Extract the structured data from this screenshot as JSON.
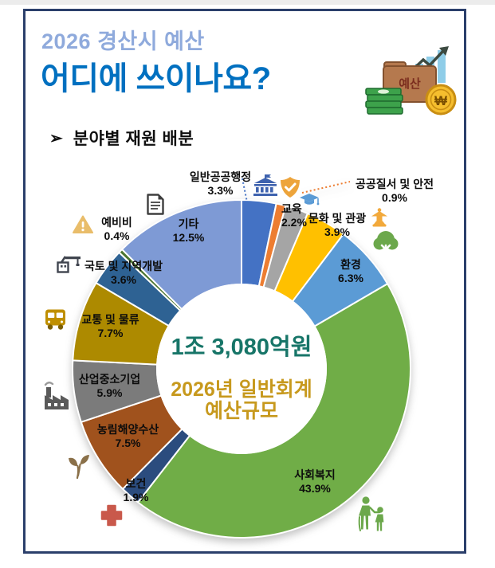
{
  "header": {
    "title_line1": "2026 경산시 예산",
    "title_line2": "어디에 쓰이나요?",
    "accent_light_blue": "#8FAADC",
    "accent_blue": "#0070C0",
    "budget_icon_label": "예산",
    "coin_symbol": "₩"
  },
  "section": {
    "bullet": "➢",
    "heading": "분야별 재원 배분"
  },
  "chart_data": {
    "type": "pie",
    "subtype": "donut",
    "title": "분야별 재원 배분",
    "start_angle_deg": 0,
    "direction": "clockwise",
    "center_label": {
      "line1": "1조 3,080억원",
      "line2": "2026년 일반회계",
      "line3": "예산규모",
      "line1_color": "#177568",
      "line23_color": "#C7991D"
    },
    "slices": [
      {
        "label": "일반공공행정",
        "value": 3.3,
        "pct": "3.3%",
        "color": "#4472C4",
        "icon": "government-building-icon"
      },
      {
        "label": "공공질서 및 안전",
        "value": 0.9,
        "pct": "0.9%",
        "color": "#ED7D31",
        "icon": "shield-check-icon"
      },
      {
        "label": "교육",
        "value": 2.2,
        "pct": "2.2%",
        "color": "#A5A5A5",
        "icon": "graduation-cap-icon"
      },
      {
        "label": "문화 및 관광",
        "value": 3.9,
        "pct": "3.9%",
        "color": "#FFC000",
        "icon": "pagoda-icon"
      },
      {
        "label": "환경",
        "value": 6.3,
        "pct": "6.3%",
        "color": "#5B9BD5",
        "icon": "tree-icon"
      },
      {
        "label": "사회복지",
        "value": 43.9,
        "pct": "43.9%",
        "color": "#70AD47",
        "icon": "elderly-child-icon"
      },
      {
        "label": "보건",
        "value": 1.9,
        "pct": "1.9%",
        "color": "#2B4C7E",
        "icon": "medical-cross-icon"
      },
      {
        "label": "농림해양수산",
        "value": 7.5,
        "pct": "7.5%",
        "color": "#A0521D",
        "icon": "sprout-icon"
      },
      {
        "label": "산업중소기업",
        "value": 5.9,
        "pct": "5.9%",
        "color": "#7B7B7B",
        "icon": "factory-icon"
      },
      {
        "label": "교통 및 물류",
        "value": 7.7,
        "pct": "7.7%",
        "color": "#AD8A00",
        "icon": "bus-icon"
      },
      {
        "label": "국토 및 지역개발",
        "value": 3.6,
        "pct": "3.6%",
        "color": "#2E6293",
        "icon": "crane-icon"
      },
      {
        "label": "예비비",
        "value": 0.4,
        "pct": "0.4%",
        "color": "#4D7631",
        "icon": "warning-icon"
      },
      {
        "label": "기타",
        "value": 12.5,
        "pct": "12.5%",
        "color": "#7E9AD5",
        "icon": "document-icon"
      }
    ]
  }
}
